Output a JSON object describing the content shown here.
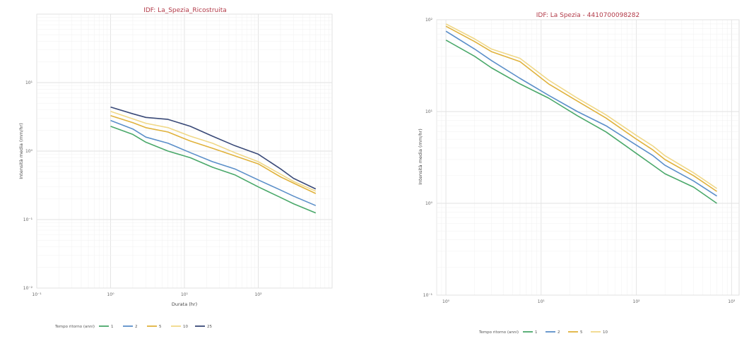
{
  "chart_data": [
    {
      "type": "line",
      "title": "IDF: La_Spezia_Ricostruita",
      "xlabel": "Durata (hr)",
      "ylabel": "Intensità media (mm/hr)",
      "x_scale": "log",
      "y_scale": "log",
      "xlim": [
        0.1,
        1000
      ],
      "ylim": [
        0.01,
        100
      ],
      "x_ticks": [
        "10⁻¹",
        "10⁰",
        "10¹",
        "10²"
      ],
      "y_ticks": [
        "10⁻²",
        "10⁻¹",
        "10⁰",
        "10¹"
      ],
      "grid": true,
      "legend_title": "Tempo ritorno (anni)",
      "legend_position": "bottom",
      "series": [
        {
          "name": "1",
          "color": "#4aa86a",
          "x": [
            1,
            2,
            3,
            6,
            12,
            24,
            48,
            100,
            200,
            300,
            600
          ],
          "y": [
            2.3,
            1.75,
            1.35,
            1.0,
            0.8,
            0.58,
            0.45,
            0.3,
            0.21,
            0.17,
            0.125
          ]
        },
        {
          "name": "2",
          "color": "#5b8fc9",
          "x": [
            1,
            2,
            3,
            6,
            12,
            24,
            48,
            100,
            200,
            300,
            600
          ],
          "y": [
            2.8,
            2.1,
            1.6,
            1.3,
            0.95,
            0.7,
            0.55,
            0.38,
            0.27,
            0.22,
            0.16
          ]
        },
        {
          "name": "5",
          "color": "#e0b23c",
          "x": [
            1,
            2,
            3,
            6,
            12,
            24,
            48,
            100,
            200,
            300,
            600
          ],
          "y": [
            3.3,
            2.6,
            2.2,
            1.9,
            1.4,
            1.1,
            0.85,
            0.65,
            0.42,
            0.34,
            0.24
          ]
        },
        {
          "name": "10",
          "color": "#f0d888",
          "x": [
            1,
            2,
            3,
            6,
            12,
            24,
            48,
            100,
            200,
            300,
            600
          ],
          "y": [
            3.8,
            2.95,
            2.55,
            2.2,
            1.65,
            1.3,
            0.95,
            0.7,
            0.46,
            0.36,
            0.26
          ]
        },
        {
          "name": "25",
          "color": "#3a4a78",
          "x": [
            1,
            2,
            3,
            6,
            12,
            24,
            48,
            100,
            200,
            300,
            600
          ],
          "y": [
            4.4,
            3.5,
            3.1,
            2.9,
            2.3,
            1.65,
            1.2,
            0.9,
            0.55,
            0.4,
            0.28
          ]
        }
      ]
    },
    {
      "type": "line",
      "title": "IDF: La Spezia - 4410700098282",
      "xlabel": "",
      "ylabel": "Intensità media (mm/hr)",
      "x_scale": "log",
      "y_scale": "log",
      "xlim": [
        0.8,
        1200
      ],
      "ylim": [
        0.1,
        100
      ],
      "x_ticks": [
        "10⁰",
        "10¹",
        "10²",
        "10³"
      ],
      "y_ticks": [
        "10⁻¹",
        "10⁰",
        "10¹",
        "10²"
      ],
      "grid": true,
      "legend_title": "Tempo ritorno (anni)",
      "legend_position": "bottom",
      "series": [
        {
          "name": "1",
          "color": "#4aa86a",
          "x": [
            1,
            2,
            3,
            6,
            12,
            24,
            48,
            100,
            150,
            200,
            400,
            700
          ],
          "y": [
            60,
            40,
            30,
            20,
            14,
            9,
            6,
            3.5,
            2.6,
            2.1,
            1.5,
            1.0
          ]
        },
        {
          "name": "2",
          "color": "#5b8fc9",
          "x": [
            1,
            2,
            3,
            6,
            12,
            24,
            48,
            100,
            150,
            200,
            400,
            700
          ],
          "y": [
            75,
            48,
            36,
            23,
            15,
            10,
            7,
            4.3,
            3.3,
            2.6,
            1.75,
            1.2
          ]
        },
        {
          "name": "5",
          "color": "#e0b23c",
          "x": [
            1,
            2,
            3,
            6,
            12,
            24,
            48,
            100,
            150,
            200,
            400,
            700
          ],
          "y": [
            85,
            58,
            45,
            35,
            20,
            13,
            8.5,
            5.0,
            3.8,
            3.0,
            2.0,
            1.35
          ]
        },
        {
          "name": "10",
          "color": "#f0d888",
          "x": [
            1,
            2,
            3,
            6,
            12,
            24,
            48,
            100,
            150,
            200,
            400,
            700
          ],
          "y": [
            90,
            62,
            48,
            38,
            22,
            14,
            9.2,
            5.5,
            4.2,
            3.3,
            2.15,
            1.45
          ]
        }
      ]
    }
  ]
}
